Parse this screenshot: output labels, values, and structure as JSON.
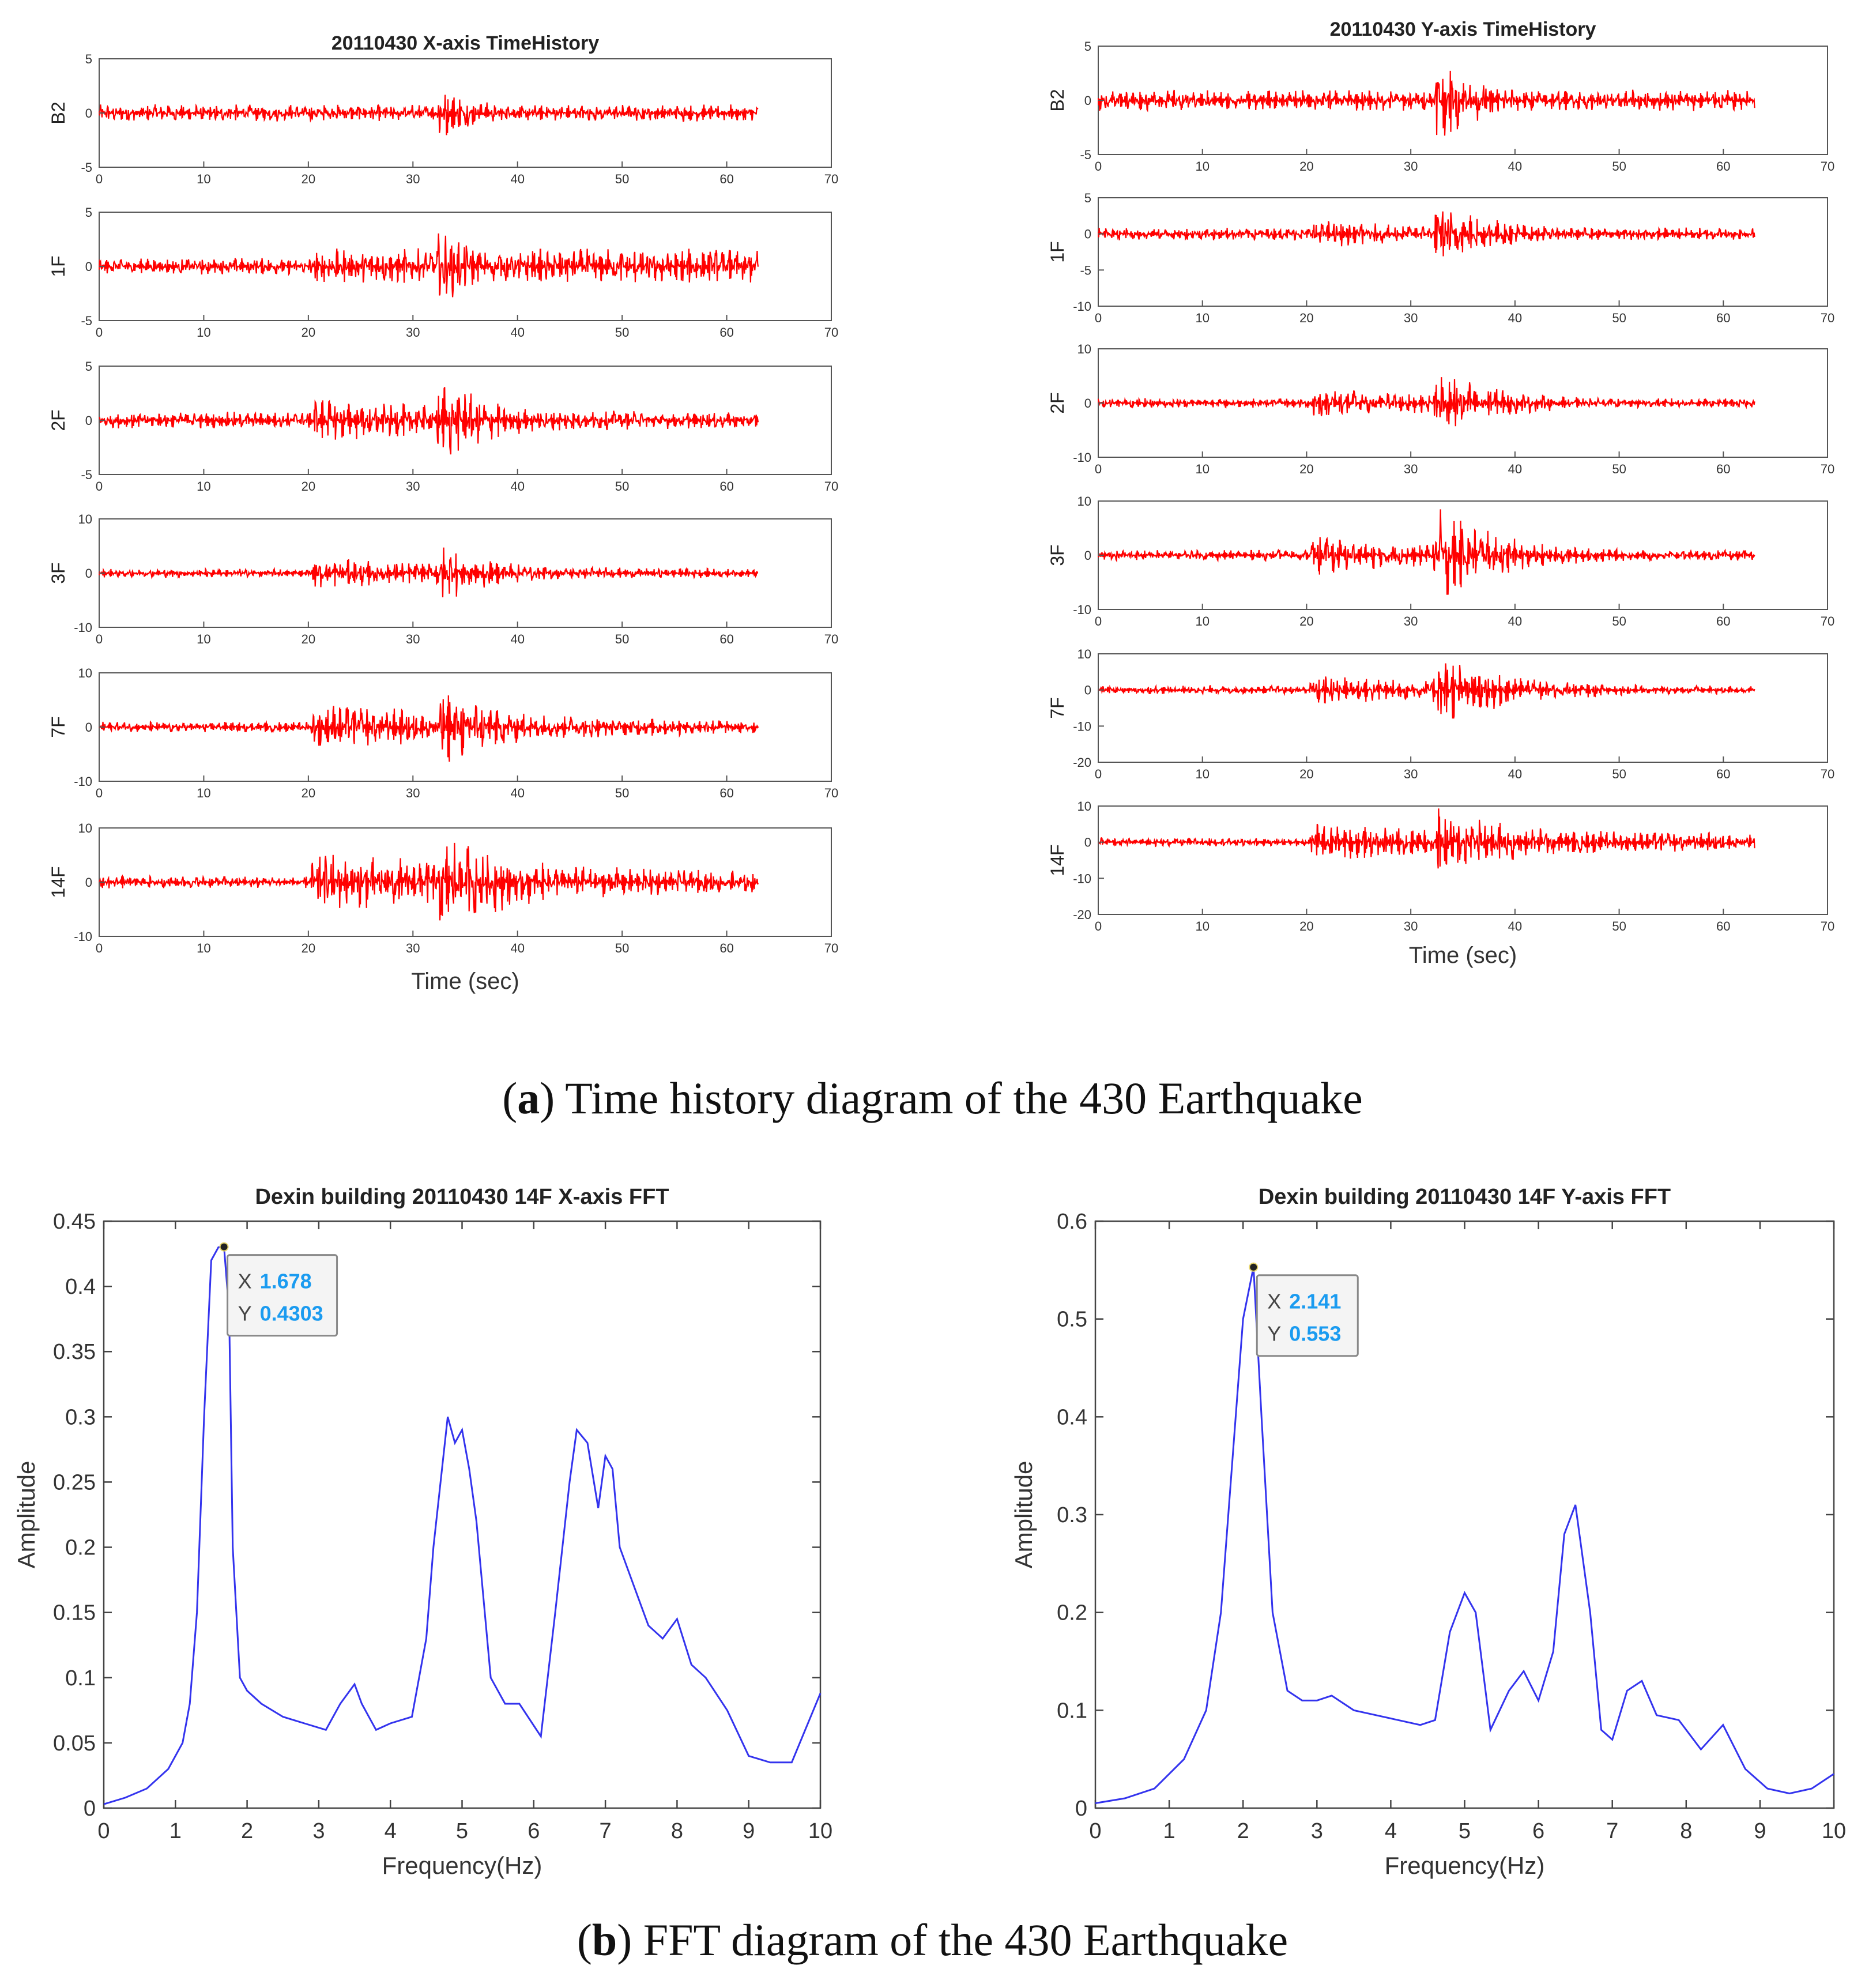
{
  "captions": {
    "a": {
      "letter": "a",
      "text": "Time history diagram of the 430 Earthquake"
    },
    "b": {
      "letter": "b",
      "text": "FFT diagram of the 430 Earthquake"
    }
  },
  "chart_data": [
    {
      "type": "line",
      "panel": "a-left",
      "title": "20110430 X-axis TimeHistory",
      "xlabel": "Time (sec)",
      "xlim": [
        0,
        70
      ],
      "xticks": [
        0,
        10,
        20,
        30,
        40,
        50,
        60,
        70
      ],
      "color": "#ff0000",
      "series": [
        {
          "name": "B2",
          "ylim": [
            -5,
            5
          ],
          "yticks": [
            -5,
            0,
            5
          ],
          "noise": 0.8,
          "bursts": [
            [
              32,
              3.2,
              0.35
            ]
          ]
        },
        {
          "name": "1F",
          "ylim": [
            -5,
            5
          ],
          "yticks": [
            -5,
            0,
            5
          ],
          "noise": 0.8,
          "bursts": [
            [
              20,
              1.2,
              0.0
            ],
            [
              32,
              4.0,
              0.25
            ]
          ]
        },
        {
          "name": "2F",
          "ylim": [
            -5,
            5
          ],
          "yticks": [
            -5,
            0,
            5
          ],
          "noise": 0.8,
          "bursts": [
            [
              20,
              1.8,
              0.05
            ],
            [
              32,
              4.2,
              0.2
            ]
          ]
        },
        {
          "name": "3F",
          "ylim": [
            -10,
            10
          ],
          "yticks": [
            -10,
            0,
            10
          ],
          "noise": 0.8,
          "bursts": [
            [
              20,
              2.6,
              0.05
            ],
            [
              32,
              6.0,
              0.18
            ]
          ]
        },
        {
          "name": "7F",
          "ylim": [
            -10,
            10
          ],
          "yticks": [
            -10,
            0,
            10
          ],
          "noise": 1.0,
          "bursts": [
            [
              20,
              4.2,
              0.04
            ],
            [
              32,
              8.0,
              0.14
            ]
          ]
        },
        {
          "name": "14F",
          "ylim": [
            -10,
            10
          ],
          "yticks": [
            -10,
            0,
            10
          ],
          "noise": 1.2,
          "bursts": [
            [
              20,
              5.0,
              0.03
            ],
            [
              32,
              10.0,
              0.12
            ]
          ]
        }
      ],
      "data_end_sec": 63
    },
    {
      "type": "line",
      "panel": "a-right",
      "title": "20110430 Y-axis TimeHistory",
      "xlabel": "Time (sec)",
      "xlim": [
        0,
        70
      ],
      "xticks": [
        0,
        10,
        20,
        30,
        40,
        50,
        60,
        70
      ],
      "color": "#ff0000",
      "series": [
        {
          "name": "B2",
          "ylim": [
            -5,
            5
          ],
          "yticks": [
            -5,
            0,
            5
          ],
          "noise": 1.0,
          "bursts": [
            [
              32,
              4.0,
              0.25
            ]
          ]
        },
        {
          "name": "1F",
          "ylim": [
            -10,
            5
          ],
          "yticks": [
            -10,
            -5,
            0,
            5
          ],
          "noise": 0.9,
          "bursts": [
            [
              20,
              1.6,
              0.08
            ],
            [
              32,
              5.5,
              0.2
            ]
          ]
        },
        {
          "name": "2F",
          "ylim": [
            -10,
            10
          ],
          "yticks": [
            -10,
            0,
            10
          ],
          "noise": 0.9,
          "bursts": [
            [
              20,
              3.0,
              0.08
            ],
            [
              32,
              7.5,
              0.18
            ]
          ]
        },
        {
          "name": "3F",
          "ylim": [
            -10,
            10
          ],
          "yticks": [
            -10,
            0,
            10
          ],
          "noise": 1.0,
          "bursts": [
            [
              20,
              3.6,
              0.08
            ],
            [
              32,
              9.5,
              0.16
            ]
          ]
        },
        {
          "name": "7F",
          "ylim": [
            -20,
            10
          ],
          "yticks": [
            -20,
            -10,
            0,
            10
          ],
          "noise": 1.2,
          "bursts": [
            [
              20,
              4.2,
              0.06
            ],
            [
              32,
              11.0,
              0.14
            ]
          ]
        },
        {
          "name": "14F",
          "ylim": [
            -20,
            10
          ],
          "yticks": [
            -20,
            -10,
            0,
            10
          ],
          "noise": 1.2,
          "bursts": [
            [
              20,
              4.5,
              0.02
            ],
            [
              32,
              10.0,
              0.1
            ]
          ]
        }
      ],
      "data_end_sec": 63
    },
    {
      "type": "line",
      "panel": "b-left",
      "title": "Dexin building 20110430 14F X-axis FFT",
      "xlabel": "Frequency(Hz)",
      "ylabel": "Amplitude",
      "xlim": [
        0,
        10
      ],
      "ylim": [
        0,
        0.45
      ],
      "xticks": [
        0,
        1,
        2,
        3,
        4,
        5,
        6,
        7,
        8,
        9,
        10
      ],
      "yticks": [
        0,
        0.05,
        0.1,
        0.15,
        0.2,
        0.25,
        0.3,
        0.35,
        0.4,
        0.45
      ],
      "color": "#3333ee",
      "x": [
        0,
        0.3,
        0.6,
        0.9,
        1.1,
        1.2,
        1.3,
        1.4,
        1.5,
        1.6,
        1.678,
        1.75,
        1.8,
        1.9,
        2.0,
        2.2,
        2.5,
        2.8,
        3.1,
        3.3,
        3.5,
        3.6,
        3.8,
        4.0,
        4.3,
        4.5,
        4.6,
        4.8,
        4.9,
        5.0,
        5.1,
        5.2,
        5.4,
        5.6,
        5.8,
        6.1,
        6.3,
        6.5,
        6.6,
        6.75,
        6.9,
        7.0,
        7.1,
        7.2,
        7.4,
        7.6,
        7.8,
        8.0,
        8.2,
        8.4,
        8.7,
        9.0,
        9.3,
        9.6,
        10.0
      ],
      "values": [
        0.003,
        0.008,
        0.015,
        0.03,
        0.05,
        0.08,
        0.15,
        0.3,
        0.42,
        0.43,
        0.4303,
        0.38,
        0.2,
        0.1,
        0.09,
        0.08,
        0.07,
        0.065,
        0.06,
        0.08,
        0.095,
        0.08,
        0.06,
        0.065,
        0.07,
        0.13,
        0.2,
        0.3,
        0.28,
        0.29,
        0.26,
        0.22,
        0.1,
        0.08,
        0.08,
        0.055,
        0.15,
        0.25,
        0.29,
        0.28,
        0.23,
        0.27,
        0.26,
        0.2,
        0.17,
        0.14,
        0.13,
        0.145,
        0.11,
        0.1,
        0.075,
        0.04,
        0.035,
        0.035,
        0.088
      ],
      "annotation": {
        "x_label": "X",
        "y_label": "Y",
        "x": "1.678",
        "y": "0.4303"
      }
    },
    {
      "type": "line",
      "panel": "b-right",
      "title": "Dexin building 20110430 14F Y-axis FFT",
      "xlabel": "Frequency(Hz)",
      "ylabel": "Amplitude",
      "xlim": [
        0,
        10
      ],
      "ylim": [
        0,
        0.6
      ],
      "xticks": [
        0,
        1,
        2,
        3,
        4,
        5,
        6,
        7,
        8,
        9,
        10
      ],
      "yticks": [
        0,
        0.1,
        0.2,
        0.3,
        0.4,
        0.5,
        0.6
      ],
      "color": "#3333ee",
      "x": [
        0,
        0.4,
        0.8,
        1.2,
        1.5,
        1.7,
        1.9,
        2.0,
        2.141,
        2.25,
        2.4,
        2.6,
        2.8,
        3.0,
        3.2,
        3.5,
        3.8,
        4.1,
        4.4,
        4.6,
        4.8,
        5.0,
        5.15,
        5.35,
        5.6,
        5.8,
        6.0,
        6.2,
        6.35,
        6.5,
        6.7,
        6.85,
        7.0,
        7.2,
        7.4,
        7.6,
        7.9,
        8.2,
        8.5,
        8.8,
        9.1,
        9.4,
        9.7,
        10.0
      ],
      "values": [
        0.005,
        0.01,
        0.02,
        0.05,
        0.1,
        0.2,
        0.4,
        0.5,
        0.553,
        0.4,
        0.2,
        0.12,
        0.11,
        0.11,
        0.115,
        0.1,
        0.095,
        0.09,
        0.085,
        0.09,
        0.18,
        0.22,
        0.2,
        0.08,
        0.12,
        0.14,
        0.11,
        0.16,
        0.28,
        0.31,
        0.2,
        0.08,
        0.07,
        0.12,
        0.13,
        0.095,
        0.09,
        0.06,
        0.085,
        0.04,
        0.02,
        0.015,
        0.02,
        0.035
      ],
      "annotation": {
        "x_label": "X",
        "y_label": "Y",
        "x": "2.141",
        "y": "0.553"
      }
    }
  ]
}
